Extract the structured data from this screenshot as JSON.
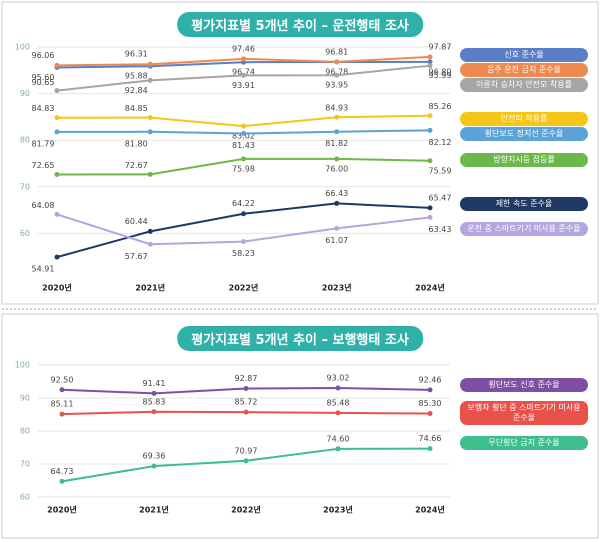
{
  "chart_data": [
    {
      "type": "line",
      "title": "평가지표별 5개년 추이 – 운전행태 조사",
      "categories": [
        "2020년",
        "2021년",
        "2022년",
        "2023년",
        "2024년"
      ],
      "ylim": [
        50,
        100
      ],
      "yticks": [
        60,
        70,
        80,
        90,
        100
      ],
      "grid": true,
      "series": [
        {
          "name": "신호 준수율",
          "color": "#5b7fc7",
          "values": [
            95.6,
            95.88,
            96.74,
            96.78,
            96.8
          ],
          "value_labels": [
            "95.60",
            "95.88",
            "96.74",
            "96.78",
            "96.80"
          ]
        },
        {
          "name": "음주 운전 금지 준수율",
          "color": "#ee8a4e",
          "values": [
            96.06,
            96.31,
            97.46,
            96.81,
            97.87
          ],
          "value_labels": [
            "96.06",
            "96.31",
            "97.46",
            "96.81",
            "97.87"
          ]
        },
        {
          "name": "이륜차 승차자 안전모 착용률",
          "color": "#a6a6a6",
          "values": [
            90.65,
            92.84,
            93.91,
            93.95,
            95.99
          ],
          "value_labels": [
            "90.65",
            "92.84",
            "93.91",
            "93.95",
            "95.99"
          ]
        },
        {
          "name": "안전띠 착용률",
          "color": "#f5c518",
          "values": [
            84.83,
            84.85,
            83.02,
            84.93,
            85.26
          ],
          "value_labels": [
            "84.83",
            "84.85",
            "83.02",
            "84.93",
            "85.26"
          ]
        },
        {
          "name": "횡단보도 정지선 준수율",
          "color": "#5ba3d9",
          "values": [
            81.79,
            81.8,
            81.43,
            81.82,
            82.12
          ],
          "value_labels": [
            "81.79",
            "81.80",
            "81.43",
            "81.82",
            "82.12"
          ]
        },
        {
          "name": "방향지시등 점등률",
          "color": "#6cb84a",
          "values": [
            72.65,
            72.67,
            75.98,
            76.0,
            75.59
          ],
          "value_labels": [
            "72.65",
            "72.67",
            "75.98",
            "76.00",
            "75.59"
          ]
        },
        {
          "name": "제한 속도 준수율",
          "color": "#1f3864",
          "values": [
            54.91,
            60.44,
            64.22,
            66.43,
            65.47
          ]
        },
        {
          "name": "운전 중 스마트기기 미사용 준수율",
          "color": "#b4a7e0",
          "values": [
            64.08,
            57.67,
            58.23,
            61.07,
            63.43
          ]
        }
      ]
    },
    {
      "type": "line",
      "title": "평가지표별 5개년 추이 – 보행행태 조사",
      "categories": [
        "2020년",
        "2021년",
        "2022년",
        "2023년",
        "2024년"
      ],
      "ylim": [
        60,
        100
      ],
      "yticks": [
        60,
        70,
        80,
        90,
        100
      ],
      "grid": true,
      "series": [
        {
          "name": "횡단보도 신호 준수율",
          "color": "#7f4fa3",
          "values": [
            92.5,
            91.41,
            92.87,
            93.02,
            92.46
          ],
          "value_labels": [
            "92.50",
            "91.41",
            "92.87",
            "93.02",
            "92.46"
          ]
        },
        {
          "name": "보행자 횡단 중 스마트기기 미사용 준수율",
          "color": "#e8524a",
          "values": [
            85.11,
            85.83,
            85.72,
            85.48,
            85.3
          ],
          "value_labels": [
            "85.11",
            "85.83",
            "85.72",
            "85.48",
            "85.30"
          ]
        },
        {
          "name": "무단횡단 금지 준수율",
          "color": "#3dbe8a",
          "values": [
            64.73,
            69.36,
            70.97,
            74.6,
            74.66
          ],
          "value_labels": [
            "64.73",
            "69.36",
            "70.97",
            "74.60",
            "74.66"
          ]
        }
      ]
    }
  ]
}
